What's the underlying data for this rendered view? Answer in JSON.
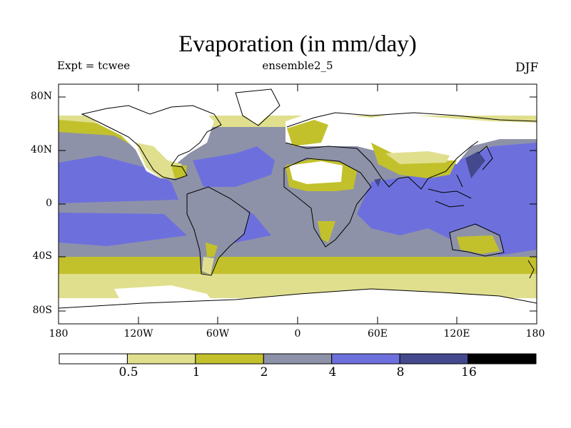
{
  "title": "Evaporation (in mm/day)",
  "experiment": "Expt = tcwee",
  "run_name": "ensemble2_5",
  "season": "DJF",
  "lat_labels": [
    "80N",
    "40N",
    "0",
    "40S",
    "80S"
  ],
  "lon_labels": [
    "180",
    "120W",
    "60W",
    "0",
    "60E",
    "120E",
    "180"
  ],
  "colorbar": {
    "labels": [
      "0.5",
      "1",
      "2",
      "4",
      "8",
      "16"
    ],
    "colors": [
      "#ffffff",
      "#e0df8e",
      "#c2c12c",
      "#8e92a8",
      "#6d70dc",
      "#44488d",
      "#000000"
    ]
  },
  "colors": {
    "ocean_base": "#8e92a8",
    "land_low": "#e0df8e",
    "coastline": "#000000"
  }
}
